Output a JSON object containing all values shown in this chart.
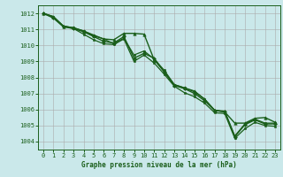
{
  "title": "Graphe pression niveau de la mer (hPa)",
  "background_color": "#cae8ea",
  "line_color": "#1a5e1a",
  "xlim": [
    -0.5,
    23.5
  ],
  "ylim": [
    1003.5,
    1012.5
  ],
  "yticks": [
    1004,
    1005,
    1006,
    1007,
    1008,
    1009,
    1010,
    1011,
    1012
  ],
  "xticks": [
    0,
    1,
    2,
    3,
    4,
    5,
    6,
    7,
    8,
    9,
    10,
    11,
    12,
    13,
    14,
    15,
    16,
    17,
    18,
    19,
    20,
    21,
    22,
    23
  ],
  "series": [
    {
      "x": [
        0,
        1,
        2,
        3,
        4,
        5,
        6,
        7,
        8,
        9,
        10,
        11,
        12,
        13,
        14,
        15,
        16,
        17,
        18,
        19,
        20,
        21,
        22,
        23
      ],
      "y": [
        1012.0,
        1011.8,
        1011.2,
        1011.1,
        1010.9,
        1010.6,
        1010.4,
        1010.35,
        1010.75,
        1010.75,
        1010.7,
        1009.1,
        1008.35,
        1007.55,
        1007.35,
        1007.15,
        1006.65,
        1005.95,
        1005.85,
        1005.15,
        1005.15,
        1005.45,
        1005.5,
        1005.2
      ],
      "marker": "^",
      "markersize": 2.5,
      "linewidth": 1.0
    },
    {
      "x": [
        0,
        1,
        2,
        3,
        4,
        5,
        6,
        7,
        8,
        9,
        10,
        11,
        12,
        13,
        14,
        15,
        16,
        17,
        18,
        19,
        20,
        21,
        22,
        23
      ],
      "y": [
        1012.0,
        1011.75,
        1011.2,
        1011.05,
        1010.85,
        1010.55,
        1010.25,
        1010.15,
        1010.55,
        1009.2,
        1009.5,
        1009.2,
        1008.35,
        1007.5,
        1007.3,
        1007.0,
        1006.55,
        1005.95,
        1005.85,
        1004.3,
        1005.05,
        1005.35,
        1005.1,
        1005.1
      ],
      "marker": "D",
      "markersize": 2.0,
      "linewidth": 1.0
    },
    {
      "x": [
        0,
        1,
        2,
        3,
        4,
        5,
        6,
        7,
        8,
        9,
        10,
        11,
        12,
        13,
        14,
        15,
        16,
        17,
        18,
        19,
        20,
        21,
        22,
        23
      ],
      "y": [
        1012.0,
        1011.7,
        1011.15,
        1011.05,
        1010.7,
        1010.35,
        1010.1,
        1010.05,
        1010.4,
        1009.0,
        1009.4,
        1008.9,
        1008.2,
        1007.45,
        1007.05,
        1006.8,
        1006.4,
        1005.8,
        1005.75,
        1004.2,
        1004.8,
        1005.2,
        1005.0,
        1004.95
      ],
      "marker": "s",
      "markersize": 1.8,
      "linewidth": 0.9
    },
    {
      "x": [
        0,
        1,
        2,
        3,
        4,
        5,
        6,
        7,
        8,
        9,
        10,
        11,
        12,
        13,
        14,
        15,
        16,
        17,
        18,
        19,
        20,
        21,
        22,
        23
      ],
      "y": [
        1012.0,
        1011.8,
        1011.2,
        1011.1,
        1010.9,
        1010.65,
        1010.4,
        1010.1,
        1010.45,
        1009.4,
        1009.65,
        1009.15,
        1008.45,
        1007.55,
        1007.35,
        1007.1,
        1006.65,
        1005.95,
        1005.9,
        1004.35,
        1005.1,
        1005.4,
        1005.15,
        1005.15
      ],
      "marker": "o",
      "markersize": 1.8,
      "linewidth": 0.9
    }
  ]
}
